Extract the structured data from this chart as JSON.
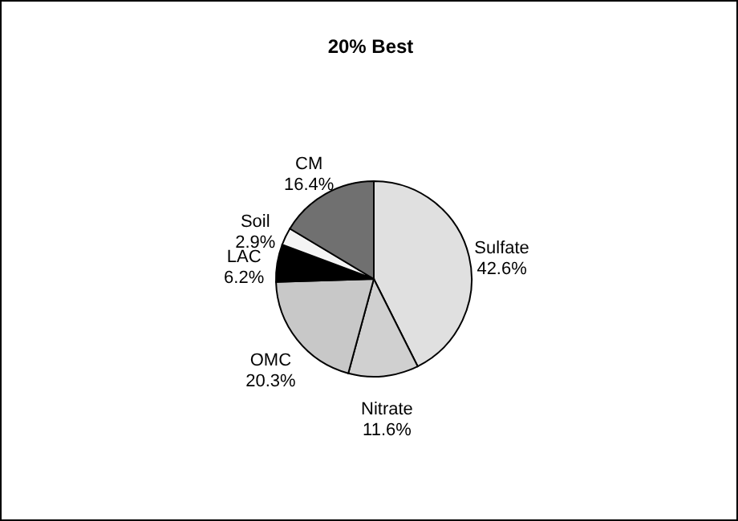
{
  "chart_data": {
    "type": "pie",
    "title": "20% Best",
    "categories": [
      "Sulfate",
      "Nitrate",
      "OMC",
      "LAC",
      "Soil",
      "CM"
    ],
    "values": [
      42.6,
      11.6,
      20.3,
      6.2,
      2.9,
      16.4
    ],
    "colors": [
      "#e0e0e0",
      "#d0d0d0",
      "#c8c8c8",
      "#000000",
      "#f4f4f4",
      "#707070"
    ],
    "value_labels": [
      "42.6%",
      "11.6%",
      "20.3%",
      "6.2%",
      "2.9%",
      "16.4%"
    ]
  }
}
